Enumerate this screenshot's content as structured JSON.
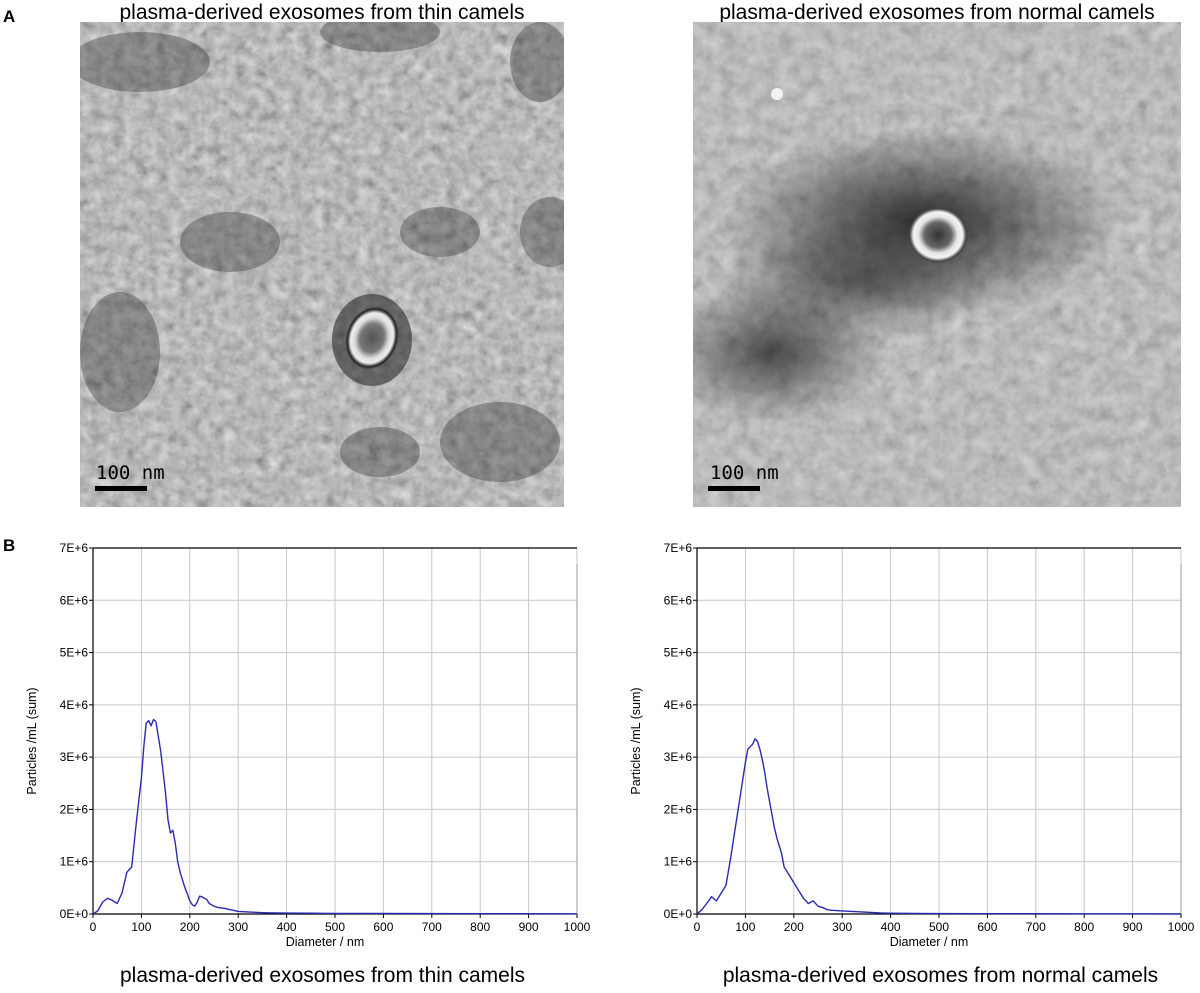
{
  "figure": {
    "panel_a_letter": "A",
    "panel_b_letter": "B"
  },
  "em_panels": [
    {
      "title": "plasma-derived exosomes from thin camels",
      "scale_bar_label": "100 nm",
      "variant": "thin"
    },
    {
      "title": "plasma-derived exosomes from normal camels",
      "scale_bar_label": "100 nm",
      "variant": "normal"
    }
  ],
  "chart_data": [
    {
      "type": "line",
      "title": "plasma-derived exosomes from thin camels",
      "xlabel": "Diameter / nm",
      "ylabel": "Particles /mL (sum)",
      "xlim": [
        0,
        1000
      ],
      "ylim": [
        0,
        7000000
      ],
      "x_ticks": [
        0,
        100,
        200,
        300,
        400,
        500,
        600,
        700,
        800,
        900,
        1000
      ],
      "x_tick_labels": [
        "0",
        "100",
        "200",
        "300",
        "400",
        "500",
        "600",
        "700",
        "800",
        "900",
        "1000"
      ],
      "y_ticks": [
        0,
        1000000,
        2000000,
        3000000,
        4000000,
        5000000,
        6000000,
        7000000
      ],
      "y_tick_labels": [
        "0E+0",
        "1E+6",
        "2E+6",
        "3E+6",
        "4E+6",
        "5E+6",
        "6E+6",
        "7E+6"
      ],
      "grid": true,
      "line_color": "#2b2bb0",
      "series": [
        {
          "x": [
            0,
            10,
            20,
            30,
            40,
            50,
            60,
            70,
            80,
            90,
            100,
            105,
            110,
            115,
            120,
            125,
            130,
            135,
            140,
            145,
            150,
            155,
            160,
            165,
            170,
            175,
            180,
            185,
            190,
            195,
            200,
            205,
            210,
            215,
            220,
            225,
            230,
            235,
            240,
            250,
            260,
            270,
            280,
            290,
            300,
            320,
            340,
            360,
            380,
            400,
            450,
            500,
            600,
            700,
            800,
            900,
            1000
          ],
          "y": [
            0,
            60000,
            230000,
            300000,
            260000,
            200000,
            400000,
            800000,
            900000,
            1800000,
            2600000,
            3200000,
            3650000,
            3700000,
            3600000,
            3720000,
            3680000,
            3400000,
            3100000,
            2700000,
            2300000,
            1800000,
            1550000,
            1600000,
            1350000,
            1000000,
            800000,
            650000,
            500000,
            380000,
            250000,
            180000,
            150000,
            220000,
            340000,
            330000,
            300000,
            280000,
            200000,
            150000,
            120000,
            110000,
            90000,
            70000,
            50000,
            40000,
            30000,
            22000,
            20000,
            18000,
            15000,
            12000,
            10000,
            8000,
            6000,
            5000,
            4000
          ]
        }
      ]
    },
    {
      "type": "line",
      "title": "plasma-derived exosomes from normal camels",
      "xlabel": "Diameter / nm",
      "ylabel": "Particles /mL (sum)",
      "xlim": [
        0,
        1000
      ],
      "ylim": [
        0,
        7000000
      ],
      "x_ticks": [
        0,
        100,
        200,
        300,
        400,
        500,
        600,
        700,
        800,
        900,
        1000
      ],
      "x_tick_labels": [
        "0",
        "100",
        "200",
        "300",
        "400",
        "500",
        "600",
        "700",
        "800",
        "900",
        "1000"
      ],
      "y_ticks": [
        0,
        1000000,
        2000000,
        3000000,
        4000000,
        5000000,
        6000000,
        7000000
      ],
      "y_tick_labels": [
        "0E+0",
        "1E+6",
        "2E+6",
        "3E+6",
        "4E+6",
        "5E+6",
        "6E+6",
        "7E+6"
      ],
      "grid": true,
      "line_color": "#2b2bb0",
      "series": [
        {
          "x": [
            0,
            10,
            20,
            30,
            40,
            50,
            60,
            70,
            80,
            90,
            100,
            105,
            110,
            115,
            120,
            125,
            130,
            135,
            140,
            145,
            150,
            155,
            160,
            165,
            170,
            175,
            180,
            190,
            200,
            210,
            220,
            230,
            240,
            250,
            260,
            270,
            280,
            300,
            320,
            340,
            360,
            380,
            400,
            450,
            500,
            600,
            700,
            800,
            900,
            1000
          ],
          "y": [
            0,
            80000,
            200000,
            330000,
            250000,
            400000,
            550000,
            1100000,
            1700000,
            2300000,
            2900000,
            3150000,
            3200000,
            3250000,
            3350000,
            3300000,
            3150000,
            2950000,
            2700000,
            2400000,
            2150000,
            1900000,
            1650000,
            1450000,
            1300000,
            1150000,
            900000,
            750000,
            600000,
            450000,
            300000,
            200000,
            250000,
            150000,
            120000,
            80000,
            70000,
            60000,
            50000,
            40000,
            30000,
            20000,
            15000,
            10000,
            8000,
            6000,
            5000,
            4000,
            3000,
            2000
          ]
        }
      ]
    }
  ]
}
